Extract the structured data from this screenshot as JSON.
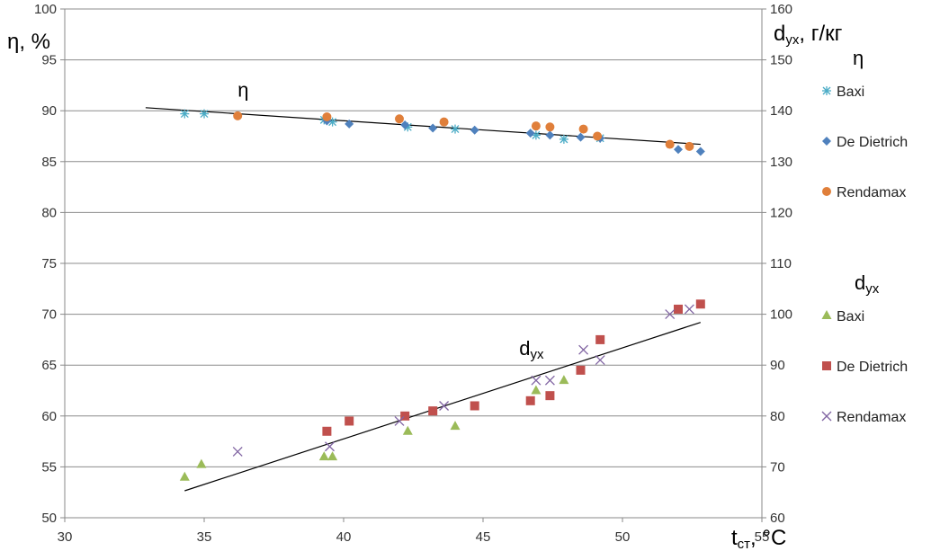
{
  "chart_data": {
    "type": "scatter",
    "x_axis": {
      "label": "t",
      "label_sub": "ст",
      "label_suffix": ", °C",
      "range": [
        30,
        55
      ],
      "ticks": [
        30,
        35,
        40,
        45,
        50,
        55
      ]
    },
    "y_left": {
      "label": "η, %",
      "range": [
        50,
        100
      ],
      "ticks": [
        50,
        55,
        60,
        65,
        70,
        75,
        80,
        85,
        90,
        95,
        100
      ]
    },
    "y_right": {
      "label": "d",
      "label_sub": "ух",
      "label_suffix": ", г/кг",
      "range": [
        60,
        160
      ],
      "ticks": [
        60,
        70,
        80,
        90,
        100,
        110,
        120,
        130,
        140,
        150,
        160
      ]
    },
    "grid": "horizontal",
    "legend_position": "right",
    "annotations": {
      "eta": {
        "text": "η",
        "x": 36.2,
        "y": 91.4
      },
      "dux": {
        "text": "d",
        "sub": "ух",
        "x": 46.3,
        "y": 66
      }
    },
    "groups": [
      {
        "header": "η",
        "header_sub": "",
        "axis": "left",
        "trendline": [
          [
            32.9,
            90.3
          ],
          [
            52.8,
            86.7
          ]
        ],
        "series": [
          {
            "name": "Baxi",
            "marker": "asterisk",
            "color": "#4BACC6",
            "points": [
              [
                34.3,
                89.7
              ],
              [
                35.0,
                89.7
              ],
              [
                39.3,
                89.1
              ],
              [
                39.6,
                88.9
              ],
              [
                42.3,
                88.4
              ],
              [
                44.0,
                88.2
              ],
              [
                46.9,
                87.6
              ],
              [
                47.9,
                87.2
              ],
              [
                49.2,
                87.3
              ]
            ]
          },
          {
            "name": "De Dietrich",
            "marker": "diamond",
            "color": "#4F81BD",
            "points": [
              [
                39.4,
                89.0
              ],
              [
                40.2,
                88.7
              ],
              [
                42.2,
                88.6
              ],
              [
                43.2,
                88.3
              ],
              [
                44.7,
                88.1
              ],
              [
                46.7,
                87.8
              ],
              [
                47.4,
                87.6
              ],
              [
                48.5,
                87.4
              ],
              [
                49.2,
                87.3
              ],
              [
                52.0,
                86.2
              ],
              [
                52.8,
                86.0
              ]
            ]
          },
          {
            "name": "Rendamax",
            "marker": "circle",
            "color": "#E07F3A",
            "points": [
              [
                36.2,
                89.5
              ],
              [
                39.4,
                89.4
              ],
              [
                42.0,
                89.2
              ],
              [
                43.6,
                88.9
              ],
              [
                46.9,
                88.5
              ],
              [
                47.4,
                88.4
              ],
              [
                48.6,
                88.2
              ],
              [
                49.1,
                87.5
              ],
              [
                51.7,
                86.7
              ],
              [
                52.4,
                86.5
              ]
            ]
          }
        ]
      },
      {
        "header": "d",
        "header_sub": "ух",
        "axis": "right",
        "trendline": [
          [
            34.3,
            65.3
          ],
          [
            52.8,
            98.4
          ]
        ],
        "series": [
          {
            "name": "Baxi",
            "marker": "triangle",
            "color": "#9BBB59",
            "points": [
              [
                34.3,
                68
              ],
              [
                34.9,
                70.5
              ],
              [
                39.3,
                72
              ],
              [
                39.6,
                72
              ],
              [
                42.3,
                77
              ],
              [
                44.0,
                78
              ],
              [
                46.9,
                85
              ],
              [
                47.9,
                87
              ]
            ]
          },
          {
            "name": "De Dietrich",
            "marker": "square",
            "color": "#C0504D",
            "points": [
              [
                39.4,
                77
              ],
              [
                40.2,
                79
              ],
              [
                42.2,
                80
              ],
              [
                43.2,
                81
              ],
              [
                44.7,
                82
              ],
              [
                46.7,
                83
              ],
              [
                47.4,
                84
              ],
              [
                48.5,
                89
              ],
              [
                49.2,
                95
              ],
              [
                52.0,
                101
              ],
              [
                52.8,
                102
              ]
            ]
          },
          {
            "name": "Rendamax",
            "marker": "x",
            "color": "#8064A2",
            "points": [
              [
                36.2,
                73
              ],
              [
                39.5,
                74
              ],
              [
                42.0,
                79
              ],
              [
                43.6,
                82
              ],
              [
                46.9,
                87
              ],
              [
                47.4,
                87
              ],
              [
                48.6,
                93
              ],
              [
                49.2,
                91
              ],
              [
                51.7,
                100
              ],
              [
                52.4,
                101
              ]
            ]
          }
        ]
      }
    ]
  }
}
